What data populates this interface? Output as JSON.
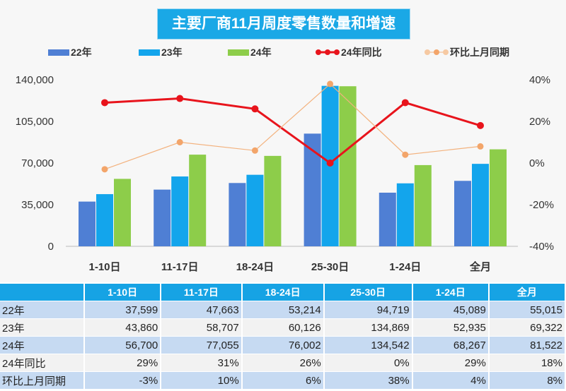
{
  "chart_data": {
    "type": "bar",
    "title": "主要厂商11月周度零售数量和增速",
    "categories": [
      "1-10日",
      "11-17日",
      "18-24日",
      "25-30日",
      "1-24日",
      "全月"
    ],
    "series": [
      {
        "name": "22年",
        "type": "bar",
        "axis": "left",
        "color": "#4f7fd4",
        "values": [
          37599,
          47663,
          53214,
          94719,
          45089,
          55015
        ]
      },
      {
        "name": "23年",
        "type": "bar",
        "axis": "left",
        "color": "#13a5ec",
        "values": [
          43860,
          58707,
          60126,
          134869,
          52935,
          69322
        ]
      },
      {
        "name": "24年",
        "type": "bar",
        "axis": "left",
        "color": "#8dcd4a",
        "values": [
          56700,
          77055,
          76002,
          134542,
          68267,
          81522
        ]
      },
      {
        "name": "24年同比",
        "type": "line",
        "axis": "right",
        "color": "#e8141c",
        "values": [
          29,
          31,
          26,
          0,
          29,
          18
        ],
        "unit": "%"
      },
      {
        "name": "环比上月同期",
        "type": "line",
        "axis": "right",
        "color": "#f3b27e",
        "values": [
          -3,
          10,
          6,
          38,
          4,
          8
        ],
        "unit": "%"
      }
    ],
    "ylim_left": [
      0,
      140000
    ],
    "yticks_left": [
      "0",
      "35,000",
      "70,000",
      "105,000",
      "140,000"
    ],
    "ylim_right": [
      -40,
      40
    ],
    "yticks_right": [
      "-40%",
      "-20%",
      "0%",
      "20%",
      "40%"
    ],
    "grid": false,
    "legend": "top"
  },
  "table": {
    "headers": [
      "",
      "1-10日",
      "11-17日",
      "18-24日",
      "25-30日",
      "1-24日",
      "全月"
    ],
    "rows": [
      [
        "22年",
        "37,599",
        "47,663",
        "53,214",
        "94,719",
        "45,089",
        "55,015"
      ],
      [
        "23年",
        "43,860",
        "58,707",
        "60,126",
        "134,869",
        "52,935",
        "69,322"
      ],
      [
        "24年",
        "56,700",
        "77,055",
        "76,002",
        "134,542",
        "68,267",
        "81,522"
      ],
      [
        "24年同比",
        "29%",
        "31%",
        "26%",
        "0%",
        "29%",
        "18%"
      ],
      [
        "环比上月同期",
        "-3%",
        "10%",
        "6%",
        "38%",
        "4%",
        "8%"
      ]
    ]
  }
}
